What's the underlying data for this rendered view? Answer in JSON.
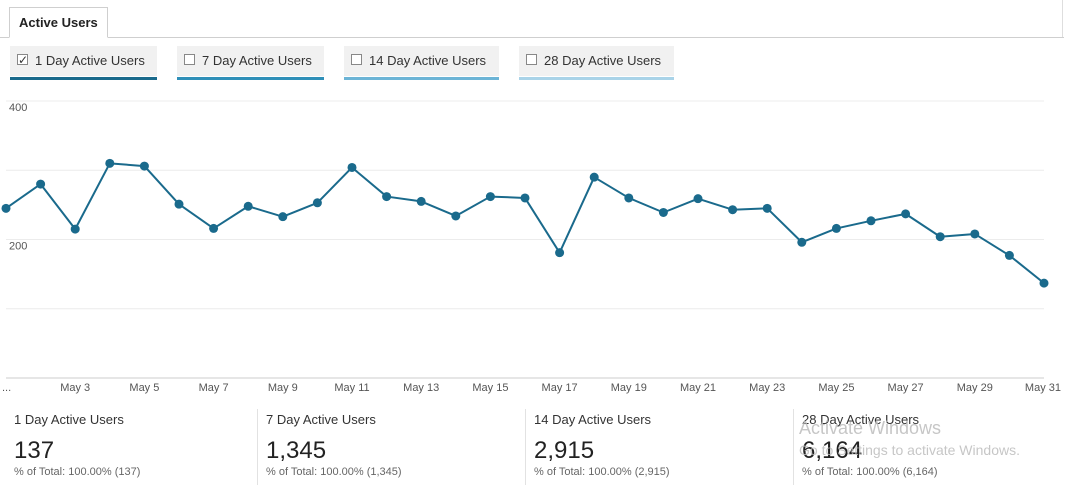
{
  "tab": {
    "label": "Active Users"
  },
  "metrics": [
    {
      "label": "1 Day Active Users",
      "checked": true,
      "color": "#1a6a8c"
    },
    {
      "label": "7 Day Active Users",
      "checked": false,
      "color": "#2f8fb8"
    },
    {
      "label": "14 Day Active Users",
      "checked": false,
      "color": "#6cb4d6"
    },
    {
      "label": "28 Day Active Users",
      "checked": false,
      "color": "#a9d3e8"
    }
  ],
  "chart_data": {
    "type": "line",
    "title": "",
    "xlabel": "",
    "ylabel": "",
    "ylim": [
      0,
      400
    ],
    "ytick_labels": [
      "400",
      "200"
    ],
    "first_xtick": "...",
    "xtick_labels": [
      "May 3",
      "May 5",
      "May 7",
      "May 9",
      "May 11",
      "May 13",
      "May 15",
      "May 17",
      "May 19",
      "May 21",
      "May 23",
      "May 25",
      "May 27",
      "May 29",
      "May 31"
    ],
    "grid": true,
    "line_color": "#1a6a8c",
    "series": [
      {
        "x": [
          "May 1",
          "May 2",
          "May 3",
          "May 4",
          "May 5",
          "May 6",
          "May 7",
          "May 8",
          "May 9",
          "May 10",
          "May 11",
          "May 12",
          "May 13",
          "May 14",
          "May 15",
          "May 16",
          "May 17",
          "May 18",
          "May 19",
          "May 20",
          "May 21",
          "May 22",
          "May 23",
          "May 24",
          "May 25",
          "May 26",
          "May 27",
          "May 28",
          "May 29",
          "May 30",
          "May 31"
        ],
        "values": [
          245,
          280,
          215,
          310,
          306,
          251,
          216,
          248,
          233,
          253,
          304,
          262,
          255,
          234,
          262,
          260,
          181,
          290,
          260,
          239,
          259,
          243,
          245,
          196,
          216,
          227,
          237,
          204,
          208,
          177,
          137
        ]
      }
    ]
  },
  "summary": [
    {
      "title": "1 Day Active Users",
      "value": "137",
      "sub": "% of Total: 100.00% (137)"
    },
    {
      "title": "7 Day Active Users",
      "value": "1,345",
      "sub": "% of Total: 100.00% (1,345)"
    },
    {
      "title": "14 Day Active Users",
      "value": "2,915",
      "sub": "% of Total: 100.00% (2,915)"
    },
    {
      "title": "28 Day Active Users",
      "value": "6,164",
      "sub": "% of Total: 100.00% (6,164)"
    }
  ],
  "watermark": {
    "line1": "Activate Windows",
    "line2": "Go to Settings to activate Windows."
  }
}
